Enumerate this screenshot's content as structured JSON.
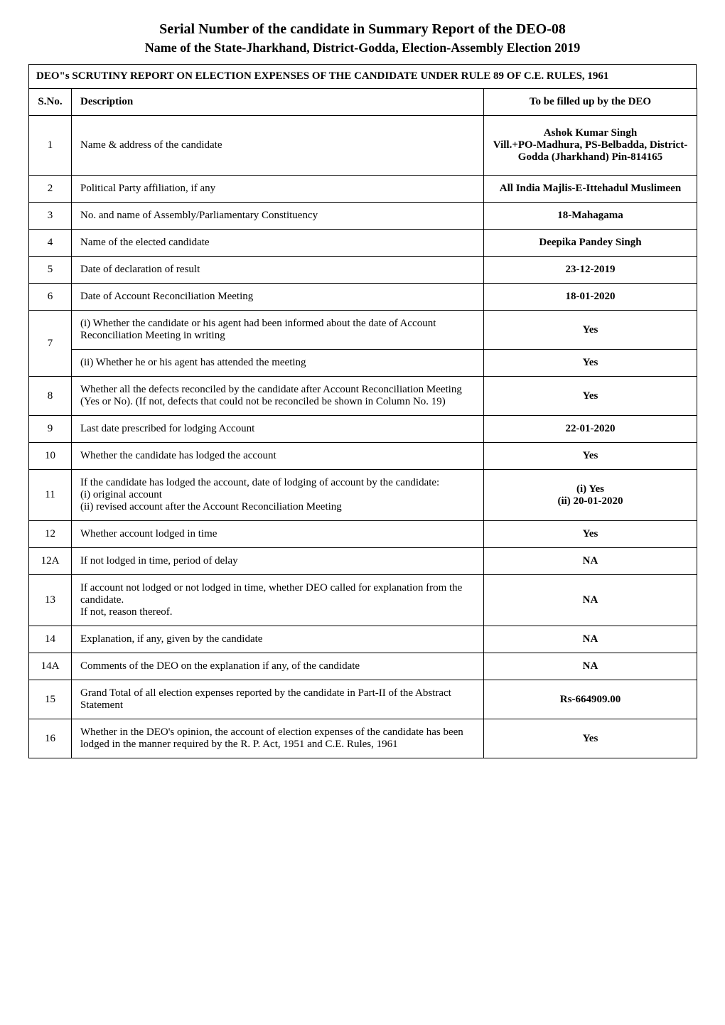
{
  "header": {
    "title": "Serial Number of the candidate in Summary Report of the DEO-08",
    "subtitle": "Name of the State-Jharkhand, District-Godda, Election-Assembly Election 2019"
  },
  "report_title": "DEO\"s SCRUTINY REPORT ON ELECTION EXPENSES OF THE CANDIDATE UNDER RULE 89 OF C.E. RULES, 1961",
  "columns": {
    "sno": "S.No.",
    "description": "Description",
    "deo": "To be filled up by the DEO"
  },
  "rows": [
    {
      "sno": "1",
      "desc": "Name & address of the candidate",
      "value": "Ashok Kumar Singh\nVill.+PO-Madhura, PS-Belbadda, District-Godda (Jharkhand) Pin-814165"
    },
    {
      "sno": "2",
      "desc": "Political Party affiliation, if any",
      "value": "All India Majlis-E-Ittehadul Muslimeen"
    },
    {
      "sno": "3",
      "desc": "No. and name of Assembly/Parliamentary Constituency",
      "value": "18-Mahagama"
    },
    {
      "sno": "4",
      "desc": "Name of the elected candidate",
      "value": "Deepika Pandey Singh"
    },
    {
      "sno": "5",
      "desc": "Date of declaration of result",
      "value": "23-12-2019"
    },
    {
      "sno": "6",
      "desc": "Date of Account Reconciliation Meeting",
      "value": "18-01-2020"
    },
    {
      "sno": "7",
      "desc": "(i) Whether the candidate or his agent had been informed about the date of Account Reconciliation Meeting in writing",
      "value": "Yes",
      "sub": {
        "desc": "(ii) Whether he or his agent has attended the meeting",
        "value": "Yes"
      }
    },
    {
      "sno": "8",
      "desc": "Whether all the defects reconciled by the candidate after Account Reconciliation Meeting (Yes or No). (If not, defects that could not be reconciled be shown in Column No. 19)",
      "value": "Yes"
    },
    {
      "sno": "9",
      "desc": "Last date prescribed for lodging Account",
      "value": "22-01-2020"
    },
    {
      "sno": "10",
      "desc": "Whether the candidate has lodged the account",
      "value": "Yes"
    },
    {
      "sno": "11",
      "desc": "If the candidate has lodged the account, date of lodging of account by the candidate:\n(i) original account\n(ii) revised account after the Account Reconciliation Meeting",
      "value": "(i) Yes\n(ii) 20-01-2020"
    },
    {
      "sno": "12",
      "desc": "Whether account lodged in time",
      "value": "Yes"
    },
    {
      "sno": "12A",
      "desc": "If not lodged in time, period of delay",
      "value": "NA"
    },
    {
      "sno": "13",
      "desc": "If account not lodged or not lodged in time, whether DEO called for explanation from the candidate.\nIf not, reason thereof.",
      "value": "NA"
    },
    {
      "sno": "14",
      "desc": "Explanation, if any, given by the candidate",
      "value": "NA"
    },
    {
      "sno": "14A",
      "desc": "Comments of the DEO on the explanation if any, of the candidate",
      "value": "NA"
    },
    {
      "sno": "15",
      "desc": "Grand Total of all election expenses reported by the candidate in Part-II of the Abstract Statement",
      "value": "Rs-664909.00"
    },
    {
      "sno": "16",
      "desc": "Whether in the DEO's opinion, the account of election expenses of the candidate has been lodged in the manner required by the R. P. Act, 1951 and C.E. Rules, 1961",
      "value": "Yes"
    }
  ],
  "styling": {
    "background_color": "#ffffff",
    "text_color": "#000000",
    "border_color": "#000000",
    "font_family": "Times New Roman",
    "title_fontsize": 20,
    "subtitle_fontsize": 18,
    "body_fontsize": 15,
    "col_widths": {
      "sno": 60,
      "desc": 580,
      "value": 300
    }
  }
}
